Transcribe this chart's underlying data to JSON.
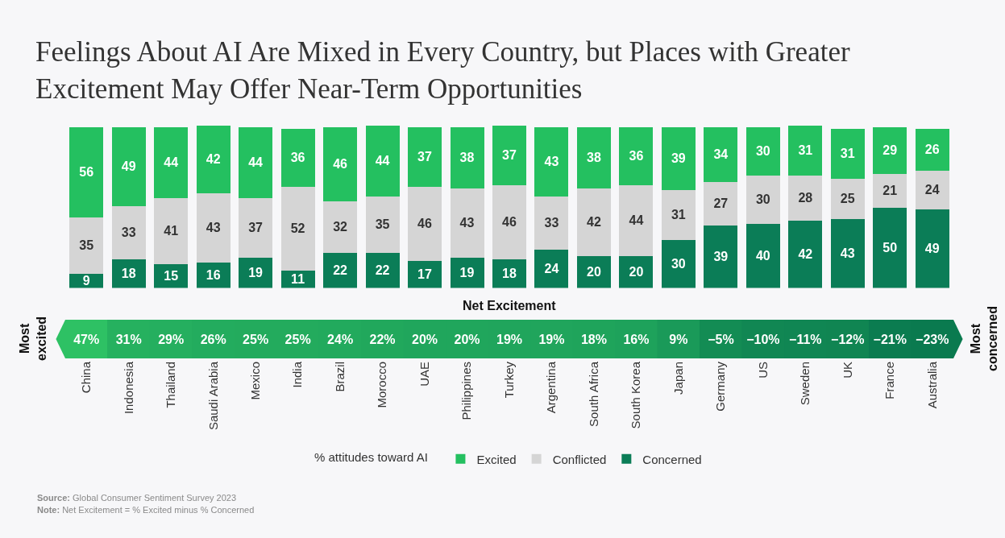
{
  "chart_data": [
    {
      "type": "bar",
      "title": "Feelings About AI Are Mixed in Every Country, but Places with Greater Excitement May Offer Near-Term Opportunities",
      "categories": [
        "China",
        "Indonesia",
        "Thailand",
        "Saudi Arabia",
        "Mexico",
        "India",
        "Brazil",
        "Morocco",
        "UAE",
        "Philippines",
        "Turkey",
        "Argentina",
        "South Africa",
        "South Korea",
        "Japan",
        "Germany",
        "US",
        "Sweden",
        "UK",
        "France",
        "Australia"
      ],
      "stacked": true,
      "ylim": [
        0,
        101
      ],
      "tick_labels": false,
      "data_labels": true,
      "legend": "bottom",
      "legend_title": "% attitudes toward AI",
      "series": [
        {
          "name": "Concerned",
          "color": "#0b7d57",
          "values": [
            9,
            18,
            15,
            16,
            19,
            11,
            22,
            22,
            17,
            19,
            18,
            24,
            20,
            20,
            30,
            39,
            40,
            42,
            43,
            50,
            49
          ]
        },
        {
          "name": "Conflicted",
          "color": "#d5d5d5",
          "values": [
            35,
            33,
            41,
            43,
            37,
            52,
            32,
            35,
            46,
            43,
            46,
            33,
            42,
            44,
            31,
            27,
            30,
            28,
            25,
            21,
            24
          ]
        },
        {
          "name": "Excited",
          "color": "#24c060",
          "values": [
            56,
            49,
            44,
            42,
            44,
            36,
            46,
            44,
            37,
            38,
            37,
            43,
            38,
            36,
            39,
            34,
            30,
            31,
            31,
            29,
            26
          ]
        }
      ]
    },
    {
      "type": "heatmap",
      "title": "Net Excitement",
      "categories": [
        "China",
        "Indonesia",
        "Thailand",
        "Saudi Arabia",
        "Mexico",
        "India",
        "Brazil",
        "Morocco",
        "UAE",
        "Philippines",
        "Turkey",
        "Argentina",
        "South Africa",
        "South Korea",
        "Japan",
        "Germany",
        "US",
        "Sweden",
        "UK",
        "France",
        "Australia"
      ],
      "y_categories": [
        null
      ],
      "cells": [
        [
          47,
          31,
          29,
          26,
          25,
          25,
          24,
          22,
          20,
          20,
          19,
          19,
          18,
          16,
          9,
          -5,
          -10,
          -11,
          -12,
          -21,
          -23
        ]
      ],
      "cell_labels": [
        [
          "47%",
          "31%",
          "29%",
          "26%",
          "25%",
          "25%",
          "24%",
          "22%",
          "20%",
          "20%",
          "19%",
          "19%",
          "18%",
          "16%",
          "9%",
          "−5%",
          "−10%",
          "−11%",
          "−12%",
          "−21%",
          "−23%"
        ]
      ],
      "annotations": [
        "Most excited",
        "Most concerned",
        "Source: Global Consumer Sentiment Survey 2023",
        "Note: Net Excitement = % Excited minus % Concerned"
      ]
    }
  ]
}
